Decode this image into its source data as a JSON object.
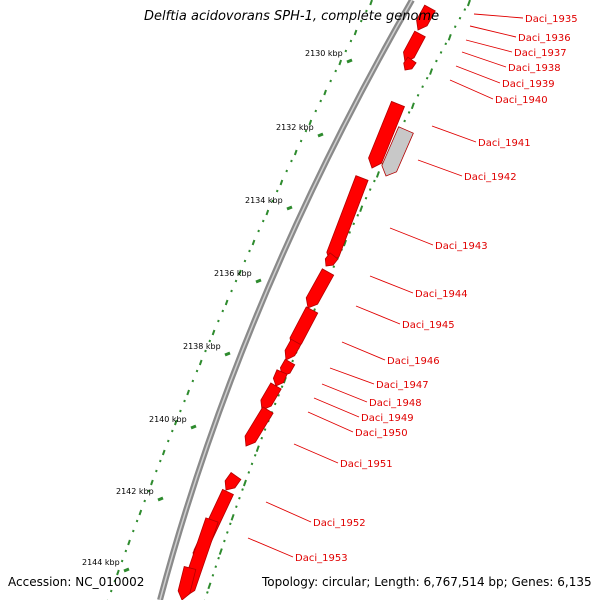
{
  "title": "Delftia acidovorans SPH-1, complete genome",
  "footer": {
    "accession": "Accession: NC_010002",
    "topology": "Topology: circular; Length: 6,767,514 bp; Genes: 6,135"
  },
  "colors": {
    "gene": "#ff0000",
    "gene_dark": "#b30000",
    "pseudogene": "#c8c8c8",
    "backbone": "#8a8a8a",
    "gc_tick": "#2e8b2e",
    "label": "#e00000"
  },
  "kbp_labels": [
    "2130 kbp",
    "2132 kbp",
    "2134 kbp",
    "2136 kbp",
    "2138 kbp",
    "2140 kbp",
    "2142 kbp",
    "2144 kbp"
  ],
  "genes": [
    "Daci_1935",
    "Daci_1936",
    "Daci_1937",
    "Daci_1938",
    "Daci_1939",
    "Daci_1940",
    "Daci_1941",
    "Daci_1942",
    "Daci_1943",
    "Daci_1944",
    "Daci_1945",
    "Daci_1946",
    "Daci_1947",
    "Daci_1948",
    "Daci_1949",
    "Daci_1950",
    "Daci_1951",
    "Daci_1952",
    "Daci_1953"
  ]
}
